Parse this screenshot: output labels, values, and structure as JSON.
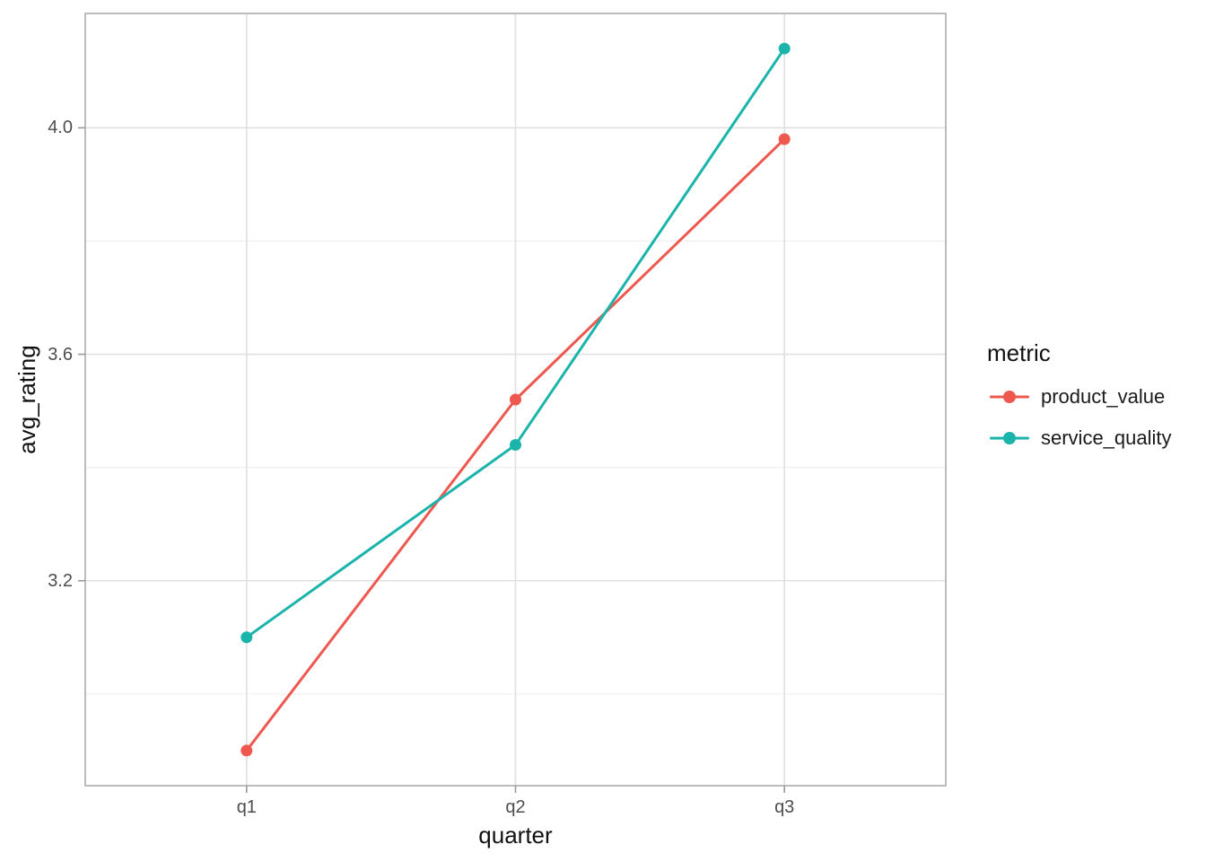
{
  "chart_data": {
    "type": "line",
    "categories": [
      "q1",
      "q2",
      "q3"
    ],
    "series": [
      {
        "name": "product_value",
        "color": "#EE584E",
        "values": [
          2.9,
          3.52,
          3.98
        ]
      },
      {
        "name": "service_quality",
        "color": "#1AB4AB",
        "values": [
          3.1,
          3.44,
          4.14
        ]
      }
    ],
    "title": "",
    "xlabel": "quarter",
    "ylabel": "avg_rating",
    "ylim": [
      2.838,
      4.202
    ],
    "yticks": [
      3.2,
      3.6,
      4.0
    ],
    "ytick_labels": [
      "3.2",
      "3.6",
      "4.0"
    ],
    "yticks_minor": [
      3.0,
      3.4,
      3.8
    ],
    "legend_title": "metric",
    "legend_position": "right",
    "grid": true,
    "colors": {
      "grid_major": "#E0E0E0",
      "grid_minor": "#EDEDED",
      "panel_border": "#ACACAC",
      "axis_tick": "#9A9A9A",
      "tick_label": "#4d4d4d",
      "axis_title": "#111111",
      "background": "#ffffff"
    }
  }
}
